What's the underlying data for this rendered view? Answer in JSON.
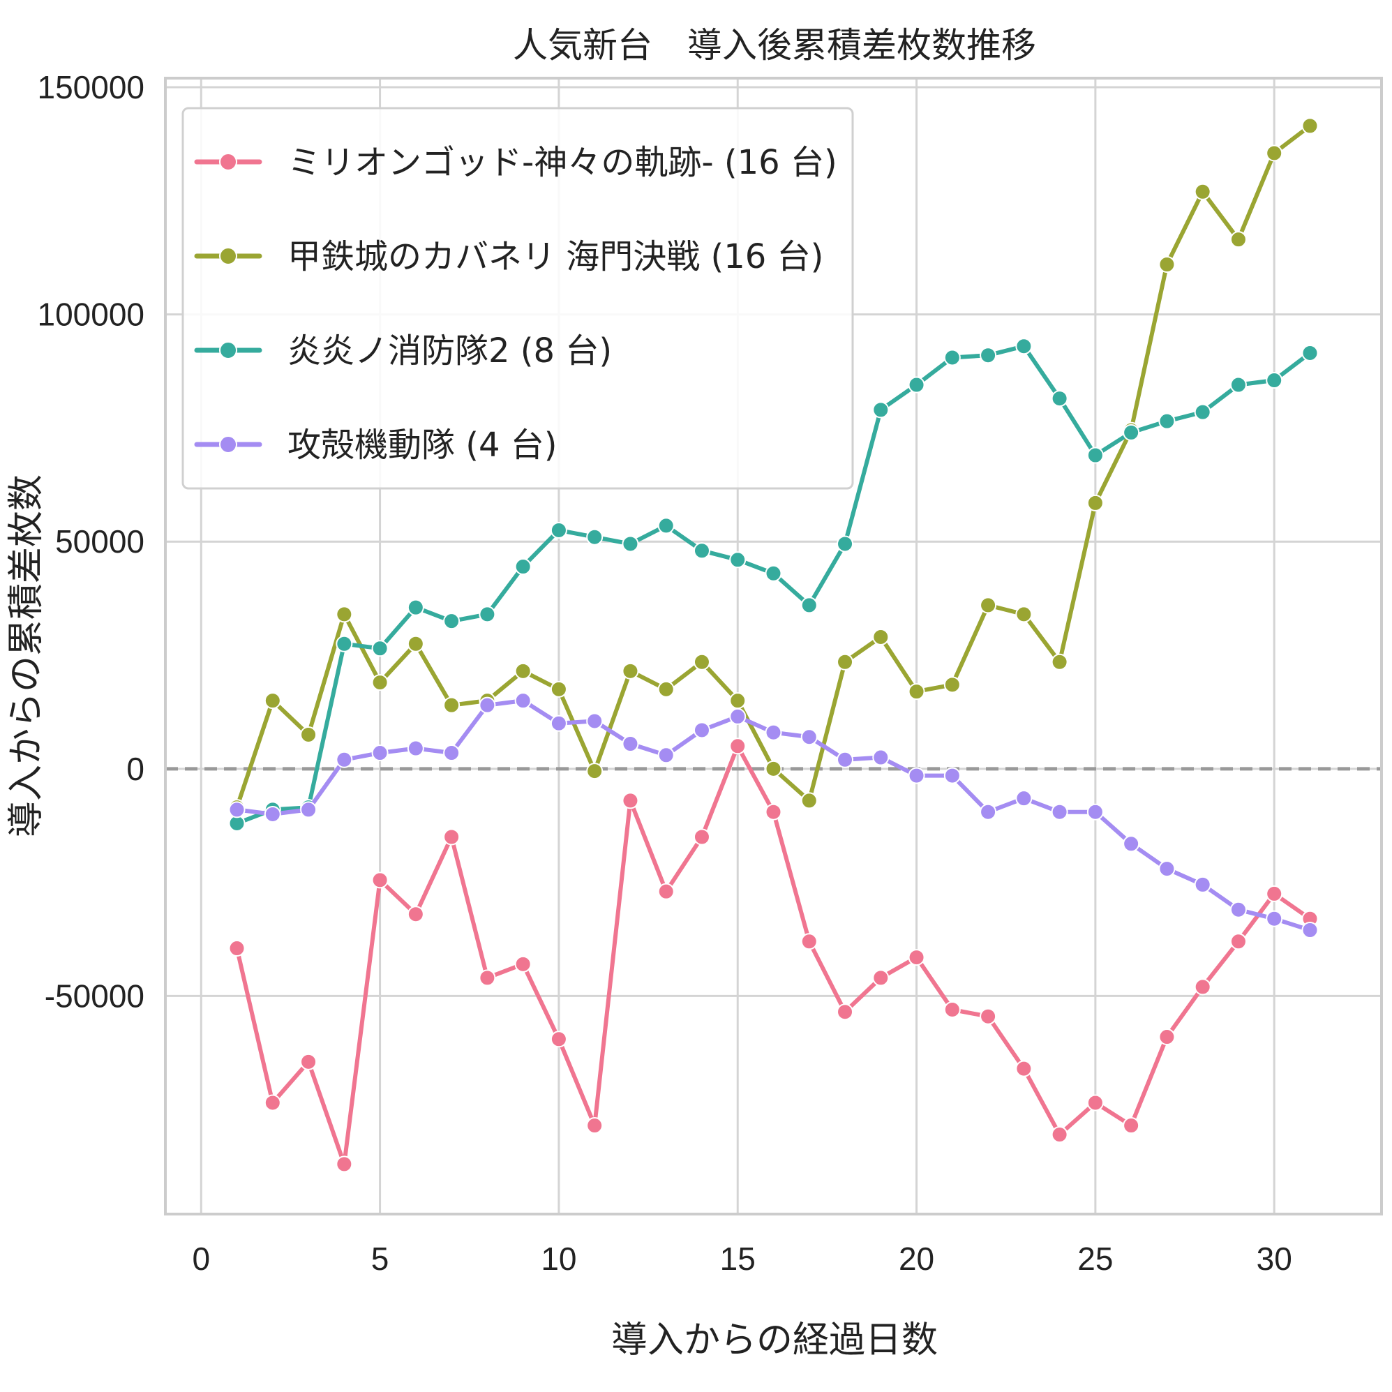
{
  "chart_data": {
    "type": "line",
    "title": "人気新台　導入後累積差枚数推移",
    "xlabel": "導入からの経過日数",
    "ylabel": "導入からの累積差枚数",
    "xlim": [
      -1,
      33
    ],
    "ylim": [
      -98000,
      152000
    ],
    "xticks": [
      0,
      5,
      10,
      15,
      20,
      25,
      30
    ],
    "xtick_labels": [
      "0",
      "5",
      "10",
      "15",
      "20",
      "25",
      "30"
    ],
    "yticks": [
      -50000,
      0,
      50000,
      100000,
      150000
    ],
    "ytick_labels": [
      "-50000",
      "0",
      "50000",
      "100000",
      "150000"
    ],
    "grid": true,
    "reference_line": 0,
    "legend_position": "upper-left",
    "x": [
      1,
      2,
      3,
      4,
      5,
      6,
      7,
      8,
      9,
      10,
      11,
      12,
      13,
      14,
      15,
      16,
      17,
      18,
      19,
      20,
      21,
      22,
      23,
      24,
      25,
      26,
      27,
      28,
      29,
      30,
      31
    ],
    "series": [
      {
        "name": "ミリオンゴッド-神々の軌跡- (16 台)",
        "color": "#f07590",
        "values": [
          -39500,
          -73500,
          -64500,
          -87000,
          -24500,
          -32000,
          -15000,
          -46000,
          -43000,
          -59500,
          -78500,
          -7000,
          -27000,
          -15000,
          5000,
          -9500,
          -38000,
          -53500,
          -46000,
          -41500,
          -53000,
          -54500,
          -66000,
          -80500,
          -73500,
          -78500,
          -59000,
          -48000,
          -38000,
          -27500,
          -33000
        ]
      },
      {
        "name": "甲鉄城のカバネリ 海門決戦 (16 台)",
        "color": "#9aa532",
        "values": [
          -8500,
          15000,
          7500,
          34000,
          19000,
          27500,
          14000,
          15000,
          21500,
          17500,
          -500,
          21500,
          17500,
          23500,
          15000,
          0,
          -7000,
          23500,
          29000,
          17000,
          18500,
          36000,
          34000,
          23500,
          58500,
          74500,
          111000,
          127000,
          116500,
          135500,
          141500
        ]
      },
      {
        "name": "炎炎ノ消防隊2 (8 台)",
        "color": "#35ab9d",
        "values": [
          -12000,
          -9000,
          -8500,
          27500,
          26500,
          35500,
          32500,
          34000,
          44500,
          52500,
          51000,
          49500,
          53500,
          48000,
          46000,
          43000,
          36000,
          49500,
          79000,
          84500,
          90500,
          91000,
          93000,
          81500,
          69000,
          74000,
          76500,
          78500,
          84500,
          85500,
          91500
        ]
      },
      {
        "name": "攻殻機動隊 (4 台)",
        "color": "#a48cf2",
        "values": [
          -9000,
          -10000,
          -9000,
          2000,
          3500,
          4500,
          3500,
          14000,
          15000,
          10000,
          10500,
          5500,
          3000,
          8500,
          11500,
          8000,
          7000,
          2000,
          2500,
          -1500,
          -1500,
          -9500,
          -6500,
          -9500,
          -9500,
          -16500,
          -22000,
          -25500,
          -31000,
          -33000,
          -35500
        ]
      }
    ]
  }
}
